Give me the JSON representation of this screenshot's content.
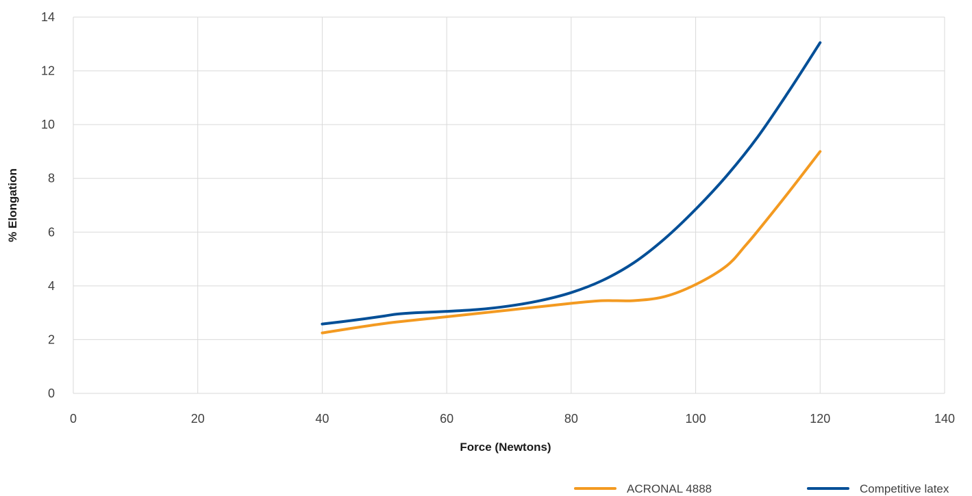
{
  "chart_data": {
    "type": "line",
    "title": "",
    "xlabel": "Force (Newtons)",
    "ylabel": "% Elongation",
    "xlim": [
      0,
      140
    ],
    "ylim": [
      0,
      14
    ],
    "x_ticks": [
      "0",
      "20",
      "40",
      "60",
      "80",
      "100",
      "120",
      "140"
    ],
    "y_ticks": [
      "0",
      "2",
      "4",
      "6",
      "8",
      "10",
      "12",
      "14"
    ],
    "grid": true,
    "legend_position": "bottom-right",
    "series": [
      {
        "name": "ACRONAL 4888",
        "color": "#f39a21",
        "points": [
          [
            40,
            2.25
          ],
          [
            50,
            2.6
          ],
          [
            60,
            2.85
          ],
          [
            70,
            3.1
          ],
          [
            80,
            3.35
          ],
          [
            85,
            3.45
          ],
          [
            90,
            3.45
          ],
          [
            95,
            3.6
          ],
          [
            100,
            4.05
          ],
          [
            105,
            4.75
          ],
          [
            108,
            5.5
          ],
          [
            110,
            6.05
          ],
          [
            115,
            7.5
          ],
          [
            120,
            9.0
          ]
        ]
      },
      {
        "name": "Competitive latex",
        "color": "#034f97",
        "points": [
          [
            40,
            2.58
          ],
          [
            45,
            2.72
          ],
          [
            50,
            2.88
          ],
          [
            52,
            2.95
          ],
          [
            55,
            3.0
          ],
          [
            60,
            3.05
          ],
          [
            65,
            3.12
          ],
          [
            70,
            3.25
          ],
          [
            75,
            3.45
          ],
          [
            80,
            3.75
          ],
          [
            85,
            4.2
          ],
          [
            90,
            4.85
          ],
          [
            95,
            5.75
          ],
          [
            100,
            6.85
          ],
          [
            105,
            8.1
          ],
          [
            110,
            9.55
          ],
          [
            115,
            11.25
          ],
          [
            120,
            13.05
          ]
        ]
      }
    ]
  }
}
